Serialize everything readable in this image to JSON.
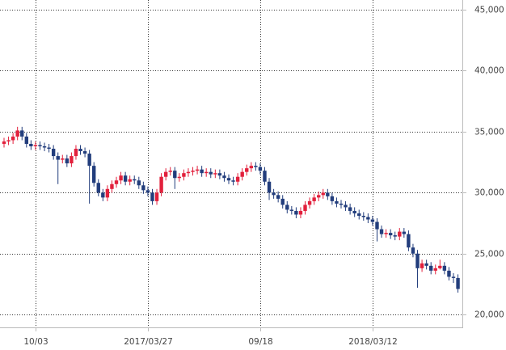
{
  "chart_data": {
    "type": "candlestick",
    "categories": [
      null,
      null,
      null,
      null,
      null,
      null,
      null,
      "10/03",
      null,
      null,
      null,
      null,
      null,
      null,
      null,
      null,
      null,
      null,
      null,
      null,
      null,
      null,
      null,
      null,
      null,
      null,
      null,
      null,
      null,
      null,
      null,
      null,
      "2017/03/27",
      null,
      null,
      null,
      null,
      null,
      null,
      null,
      null,
      null,
      null,
      null,
      null,
      null,
      null,
      null,
      null,
      null,
      null,
      null,
      null,
      null,
      null,
      null,
      null,
      "09/18",
      null,
      null,
      null,
      null,
      null,
      null,
      null,
      null,
      null,
      null,
      null,
      null,
      null,
      null,
      null,
      null,
      null,
      null,
      null,
      null,
      null,
      null,
      null,
      null,
      "2018/03/12",
      null,
      null,
      null,
      null,
      null,
      null,
      null,
      null,
      null,
      null,
      null,
      null,
      null,
      null,
      null,
      null,
      null,
      null,
      null
    ],
    "open": [
      34000,
      34200,
      34300,
      34600,
      35100,
      34600,
      34000,
      33800,
      33900,
      33800,
      33700,
      33600,
      33000,
      32700,
      32800,
      32400,
      33000,
      33600,
      33400,
      33200,
      32200,
      30800,
      30000,
      29600,
      30300,
      30700,
      31000,
      31400,
      30900,
      31100,
      31000,
      30600,
      30200,
      30000,
      29300,
      30000,
      31300,
      31700,
      31800,
      31200,
      31300,
      31600,
      31700,
      31800,
      31900,
      31600,
      31700,
      31500,
      31600,
      31400,
      31200,
      31000,
      30900,
      31300,
      31700,
      32000,
      32200,
      32100,
      31800,
      30900,
      30000,
      29800,
      29500,
      29000,
      28600,
      28500,
      28200,
      28500,
      29000,
      29300,
      29600,
      29800,
      30000,
      29700,
      29300,
      29100,
      29000,
      28800,
      28500,
      28300,
      28100,
      28000,
      27800,
      27600,
      27000,
      26600,
      26700,
      26500,
      26400,
      26800,
      26600,
      25500,
      25000,
      23800,
      24200,
      24000,
      23600,
      23800,
      24000,
      23600,
      23100,
      23000
    ],
    "high": [
      34500,
      34600,
      34900,
      35400,
      35400,
      34900,
      34300,
      34200,
      34200,
      34100,
      34000,
      33900,
      33300,
      33100,
      33100,
      33300,
      33900,
      33900,
      33700,
      33500,
      32500,
      31100,
      30300,
      30600,
      31000,
      31300,
      31700,
      31700,
      31400,
      31400,
      31300,
      30900,
      30500,
      30300,
      30300,
      31600,
      32000,
      32100,
      32100,
      31600,
      31900,
      32000,
      32100,
      32200,
      32200,
      32000,
      32000,
      31900,
      31900,
      31700,
      31500,
      31300,
      31600,
      32000,
      32300,
      32500,
      32500,
      32400,
      32100,
      31200,
      30300,
      30100,
      29800,
      29300,
      28900,
      28800,
      28800,
      29300,
      29600,
      29900,
      30100,
      30300,
      30300,
      30000,
      29600,
      29400,
      29300,
      29100,
      28800,
      28600,
      28400,
      28300,
      28100,
      27900,
      27300,
      27000,
      27000,
      26800,
      27100,
      27100,
      26900,
      25800,
      25300,
      24500,
      24500,
      24300,
      24100,
      24500,
      24300,
      23900,
      23400,
      23300
    ],
    "low": [
      33700,
      33900,
      34000,
      34300,
      34300,
      33700,
      33500,
      33500,
      33500,
      33400,
      33300,
      32700,
      30700,
      32400,
      32100,
      32100,
      32700,
      33100,
      32900,
      29100,
      30500,
      29700,
      29300,
      29300,
      30000,
      30400,
      30700,
      30600,
      30600,
      30700,
      30300,
      29900,
      29700,
      29000,
      29000,
      29700,
      31000,
      31400,
      30300,
      30900,
      31000,
      31300,
      31400,
      31500,
      31300,
      31300,
      31200,
      31200,
      31100,
      30900,
      30700,
      30600,
      30600,
      31000,
      31400,
      31700,
      31800,
      31500,
      30600,
      29400,
      29500,
      29200,
      28700,
      28300,
      28200,
      27900,
      27900,
      28200,
      28700,
      29000,
      29300,
      29500,
      29400,
      29000,
      28800,
      28700,
      28500,
      28200,
      28000,
      27800,
      27700,
      27500,
      27300,
      26000,
      26300,
      26300,
      26200,
      26100,
      26100,
      26300,
      25200,
      24700,
      22200,
      23500,
      23700,
      23300,
      23300,
      23700,
      23300,
      22800,
      22600,
      21800
    ],
    "close": [
      34200,
      34300,
      34600,
      35100,
      34600,
      34000,
      33800,
      33900,
      33800,
      33700,
      33600,
      33000,
      32700,
      32800,
      32400,
      33000,
      33600,
      33400,
      33200,
      32200,
      30800,
      30000,
      29600,
      30300,
      30700,
      31000,
      31400,
      30900,
      31100,
      31000,
      30600,
      30200,
      30000,
      29300,
      30000,
      31300,
      31700,
      31800,
      31200,
      31300,
      31600,
      31700,
      31800,
      31900,
      31600,
      31700,
      31500,
      31600,
      31400,
      31200,
      31000,
      30900,
      31300,
      31700,
      32000,
      32200,
      32100,
      31800,
      30900,
      30000,
      29800,
      29500,
      29000,
      28600,
      28500,
      28200,
      28500,
      29000,
      29300,
      29600,
      29800,
      30000,
      29700,
      29300,
      29100,
      29000,
      28800,
      28500,
      28300,
      28100,
      28000,
      27800,
      27600,
      27000,
      26600,
      26700,
      26500,
      26400,
      26800,
      26600,
      25500,
      25000,
      23800,
      24200,
      24000,
      23600,
      23800,
      24000,
      23600,
      23100,
      23000,
      22100
    ],
    "up_color": "#e2203c",
    "down_color": "#223d7c",
    "ylim": [
      18950,
      45800
    ],
    "yticks": [
      {
        "value": 20000,
        "label": "20,000"
      },
      {
        "value": 25000,
        "label": "25,000"
      },
      {
        "value": 30000,
        "label": "30,000"
      },
      {
        "value": 35000,
        "label": "35,000"
      },
      {
        "value": 40000,
        "label": "40,000"
      },
      {
        "value": 45000,
        "label": "45,000"
      }
    ],
    "grid": true
  }
}
